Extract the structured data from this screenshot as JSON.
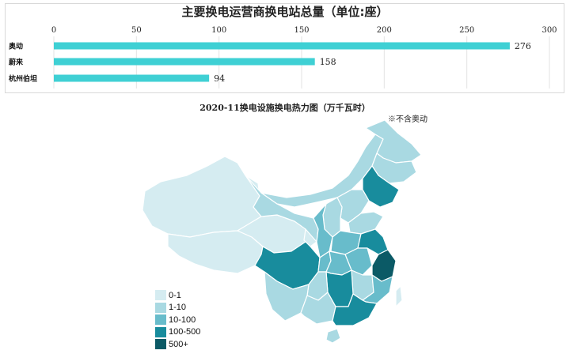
{
  "chart_data": [
    {
      "type": "bar",
      "orientation": "horizontal",
      "title": "主要换电运营商换电站总量（单位:座）",
      "categories": [
        "奥动",
        "蔚来",
        "杭州伯坦"
      ],
      "values": [
        276,
        158,
        94
      ],
      "xlim": [
        0,
        300
      ],
      "xticks": [
        0,
        50,
        100,
        150,
        200,
        250,
        300
      ],
      "grid": true,
      "bar_color": "#3fd0d4"
    },
    {
      "type": "heatmap",
      "title": "2020-11换电设施换电热力图（万千瓦时）",
      "note": "※不含奥动",
      "legend": [
        {
          "label": "0-1",
          "color": "#d5ecf1"
        },
        {
          "label": "1-10",
          "color": "#a9d9e2"
        },
        {
          "label": "10-100",
          "color": "#68bccb"
        },
        {
          "label": "100-500",
          "color": "#188c9d"
        },
        {
          "label": "500+",
          "color": "#0b5a66"
        }
      ],
      "legend_placement": "bottom-left"
    }
  ]
}
